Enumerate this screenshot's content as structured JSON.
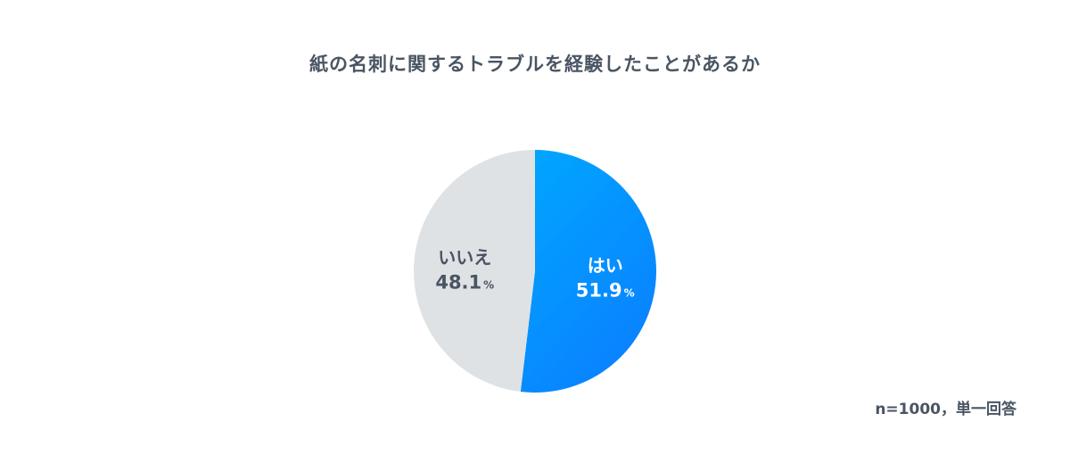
{
  "chart_data": {
    "type": "pie",
    "title": "紙の名刺に関するトラブルを経験したことがあるか",
    "slices": [
      {
        "name": "はい",
        "value": 51.9,
        "unit": "%",
        "color_start": "#00a7ff",
        "color_end": "#0a82ff",
        "label_color": "#ffffff"
      },
      {
        "name": "いいえ",
        "value": 48.1,
        "unit": "%",
        "color_start": "#dfe2e4",
        "color_end": "#dfe2e4",
        "label_color": "#4a5563"
      }
    ],
    "note": "n=1000，単一回答"
  }
}
